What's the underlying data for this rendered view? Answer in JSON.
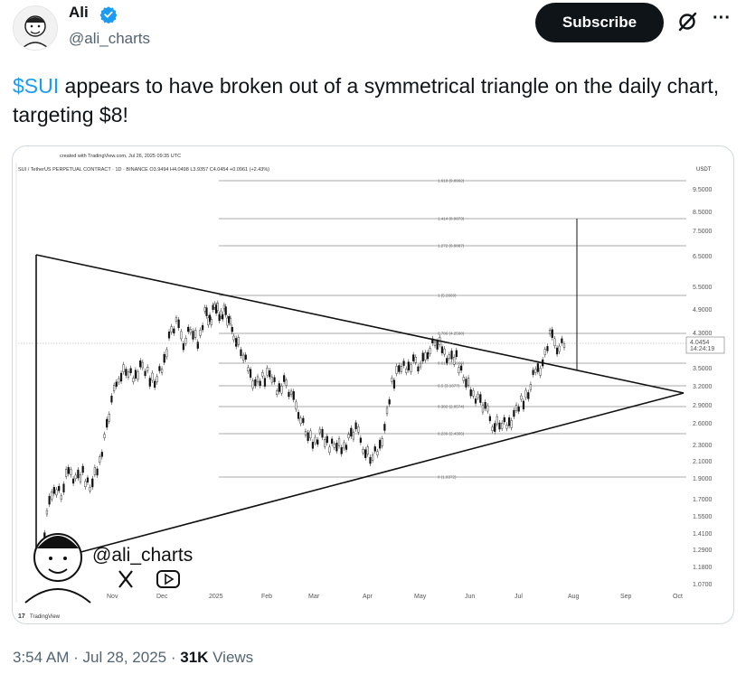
{
  "author": {
    "name": "Ali",
    "handle": "@ali_charts"
  },
  "actions": {
    "subscribe_label": "Subscribe",
    "grok_icon": "grok-icon",
    "more_icon": "more-icon"
  },
  "tweet": {
    "cashtag": "$SUI",
    "text_rest": " appears to have broken out of a symmetrical triangle on the daily chart, targeting $8!"
  },
  "meta": {
    "time": "3:54 AM",
    "sep1": " · ",
    "date": "Jul 28, 2025",
    "sep2": " · ",
    "views_count": "31K",
    "views_label": " Views"
  },
  "chart_data": {
    "type": "line",
    "created_with": "created with TradingView.com, Jul 26, 2025 09:35 UTC",
    "symbol_line": "SUI / TetherUS PERPETUAL CONTRACT · 1D · BINANCE  O3.9494  H4.0498  L3.9357  C4.0454  +0.0961 (+2.43%)",
    "currency": "USDT",
    "last_price": "4.0454",
    "countdown": "14:24:19",
    "y_ticks": [
      "9.5000",
      "8.5000",
      "7.5000",
      "6.5000",
      "5.5000",
      "4.9000",
      "4.3000",
      "3.5000",
      "3.2000",
      "2.9000",
      "2.6000",
      "2.3000",
      "2.1000",
      "1.9000",
      "1.7000",
      "1.5500",
      "1.4100",
      "1.2900",
      "1.1800",
      "1.0700"
    ],
    "x_ticks": [
      "Oct",
      "Nov",
      "Dec",
      "2025",
      "Feb",
      "Mar",
      "Apr",
      "May",
      "Jun",
      "Jul",
      "Aug",
      "Sep",
      "Oct"
    ],
    "fib_levels": [
      "1.618 (9.8962)",
      "1.414 (8.0873)",
      "1.272 (6.9887)",
      "1 (5.2669)",
      "0.786 (4.2598)",
      "0.618 (3.5966)",
      "0.5 (3.1877)",
      "0.382 (2.8574)",
      "0.236 (2.4365)",
      "0 (1.8372)"
    ],
    "price_series": [
      [
        0,
        1.2
      ],
      [
        3,
        1.55
      ],
      [
        6,
        1.85
      ],
      [
        9,
        1.75
      ],
      [
        12,
        2.0
      ],
      [
        15,
        1.9
      ],
      [
        18,
        1.95
      ],
      [
        21,
        1.85
      ],
      [
        24,
        2.0
      ],
      [
        27,
        2.4
      ],
      [
        30,
        2.9
      ],
      [
        33,
        3.4
      ],
      [
        36,
        3.5
      ],
      [
        39,
        3.3
      ],
      [
        42,
        3.55
      ],
      [
        45,
        3.4
      ],
      [
        48,
        3.3
      ],
      [
        51,
        3.5
      ],
      [
        54,
        4.2
      ],
      [
        57,
        4.5
      ],
      [
        60,
        4.1
      ],
      [
        63,
        4.4
      ],
      [
        66,
        4.0
      ],
      [
        69,
        4.8
      ],
      [
        71,
        4.5
      ],
      [
        73,
        5.1
      ],
      [
        75,
        4.7
      ],
      [
        77,
        4.9
      ],
      [
        79,
        4.5
      ],
      [
        81,
        4.3
      ],
      [
        84,
        3.9
      ],
      [
        87,
        3.5
      ],
      [
        90,
        3.2
      ],
      [
        93,
        3.3
      ],
      [
        96,
        3.5
      ],
      [
        99,
        3.1
      ],
      [
        102,
        3.3
      ],
      [
        105,
        3.0
      ],
      [
        108,
        2.8
      ],
      [
        111,
        2.5
      ],
      [
        114,
        2.3
      ],
      [
        117,
        2.45
      ],
      [
        120,
        2.3
      ],
      [
        123,
        2.35
      ],
      [
        126,
        2.25
      ],
      [
        129,
        2.4
      ],
      [
        132,
        2.5
      ],
      [
        135,
        2.3
      ],
      [
        138,
        2.15
      ],
      [
        141,
        2.2
      ],
      [
        144,
        2.5
      ],
      [
        147,
        3.2
      ],
      [
        150,
        3.6
      ],
      [
        153,
        3.5
      ],
      [
        156,
        3.7
      ],
      [
        159,
        3.5
      ],
      [
        162,
        3.9
      ],
      [
        165,
        4.1
      ],
      [
        168,
        3.9
      ],
      [
        171,
        3.7
      ],
      [
        174,
        3.7
      ],
      [
        177,
        3.4
      ],
      [
        180,
        3.1
      ],
      [
        183,
        3.0
      ],
      [
        186,
        2.8
      ],
      [
        189,
        2.6
      ],
      [
        192,
        2.6
      ],
      [
        195,
        2.55
      ],
      [
        198,
        2.7
      ],
      [
        201,
        2.9
      ],
      [
        204,
        3.1
      ],
      [
        207,
        3.5
      ],
      [
        210,
        3.6
      ],
      [
        213,
        4.2
      ],
      [
        216,
        4.0
      ],
      [
        219,
        4.05
      ]
    ],
    "triangle": {
      "upper_start": "Oct 6.5",
      "lower_start": "Oct 1.1",
      "apex": "Oct 3.05"
    },
    "target_line": "8.0873"
  },
  "watermark": {
    "handle": "@ali_charts",
    "tradingview": "TradingView"
  }
}
